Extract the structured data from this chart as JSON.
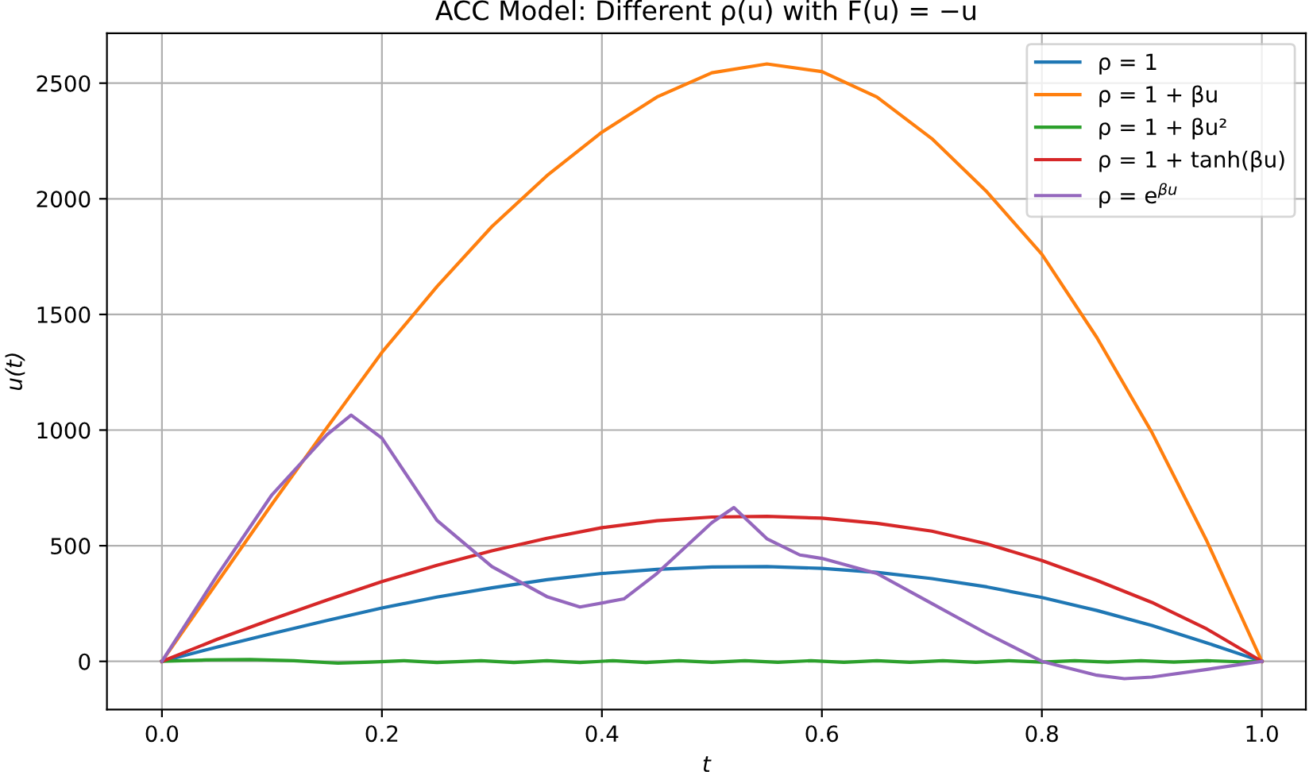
{
  "chart_data": {
    "type": "line",
    "title": "ACC Model: Different ρ(u) with F(u) = −u",
    "xlabel": "t",
    "ylabel": "u(t)",
    "series": [
      {
        "name": "ρ = 1",
        "color": "#1f77b4",
        "x": [
          0,
          0.05,
          0.1,
          0.15,
          0.2,
          0.25,
          0.3,
          0.35,
          0.4,
          0.45,
          0.5,
          0.55,
          0.6,
          0.65,
          0.7,
          0.75,
          0.8,
          0.85,
          0.9,
          0.95,
          1.0
        ],
        "values": [
          0,
          62,
          120,
          177,
          231,
          278,
          318,
          353,
          380,
          398,
          408,
          410,
          402,
          385,
          358,
          322,
          276,
          220,
          155,
          80,
          0
        ]
      },
      {
        "name": "ρ = 1 + βu",
        "color": "#ff7f0e",
        "x": [
          0,
          0.05,
          0.1,
          0.15,
          0.2,
          0.25,
          0.3,
          0.35,
          0.4,
          0.45,
          0.5,
          0.55,
          0.6,
          0.65,
          0.7,
          0.75,
          0.8,
          0.85,
          0.9,
          0.95,
          1.0
        ],
        "values": [
          0,
          340,
          680,
          1010,
          1336,
          1620,
          1880,
          2100,
          2288,
          2440,
          2545,
          2583,
          2550,
          2440,
          2260,
          2030,
          1760,
          1400,
          990,
          520,
          0
        ]
      },
      {
        "name": "ρ = 1 + βu²",
        "color": "#2ca02c",
        "x": [
          0,
          0.04,
          0.08,
          0.12,
          0.16,
          0.19,
          0.22,
          0.25,
          0.29,
          0.32,
          0.35,
          0.38,
          0.41,
          0.44,
          0.47,
          0.5,
          0.53,
          0.56,
          0.59,
          0.62,
          0.65,
          0.68,
          0.71,
          0.74,
          0.77,
          0.8,
          0.83,
          0.86,
          0.89,
          0.92,
          0.95,
          0.98,
          1.0
        ],
        "values": [
          0,
          6,
          8,
          3,
          -8,
          -3,
          3,
          -5,
          3,
          -5,
          3,
          -5,
          3,
          -5,
          3,
          -4,
          3,
          -4,
          3,
          -4,
          3,
          -4,
          3,
          -4,
          3,
          -3,
          3,
          -3,
          3,
          -3,
          3,
          -2,
          0
        ]
      },
      {
        "name": "ρ = 1 + tanh(βu)",
        "color": "#d62728",
        "x": [
          0,
          0.05,
          0.1,
          0.15,
          0.2,
          0.25,
          0.3,
          0.35,
          0.4,
          0.45,
          0.5,
          0.55,
          0.6,
          0.65,
          0.7,
          0.75,
          0.8,
          0.85,
          0.9,
          0.95,
          1.0
        ],
        "values": [
          0,
          95,
          182,
          265,
          345,
          415,
          478,
          532,
          578,
          608,
          624,
          627,
          619,
          597,
          563,
          508,
          436,
          350,
          255,
          140,
          0
        ]
      },
      {
        "name": "ρ = e$^{βu}$",
        "color": "#9467bd",
        "x": [
          0,
          0.05,
          0.1,
          0.15,
          0.172,
          0.2,
          0.25,
          0.3,
          0.35,
          0.38,
          0.42,
          0.45,
          0.5,
          0.52,
          0.55,
          0.58,
          0.6,
          0.65,
          0.7,
          0.75,
          0.8,
          0.85,
          0.875,
          0.9,
          0.95,
          1.0
        ],
        "values": [
          0,
          370,
          720,
          980,
          1065,
          965,
          610,
          410,
          280,
          235,
          270,
          380,
          600,
          665,
          530,
          460,
          445,
          380,
          250,
          120,
          0,
          -60,
          -75,
          -68,
          -35,
          0
        ]
      }
    ],
    "xlim": [
      -0.05,
      1.04
    ],
    "ylim": [
      -208,
      2716
    ],
    "xticks": [
      {
        "value": 0,
        "label": "0.0"
      },
      0.2,
      0.4,
      0.6,
      0.8,
      {
        "value": 1,
        "label": "1.0"
      }
    ],
    "yticks": [
      0,
      500,
      1000,
      1500,
      2000,
      2500
    ],
    "grid": true,
    "legend": "top right"
  }
}
